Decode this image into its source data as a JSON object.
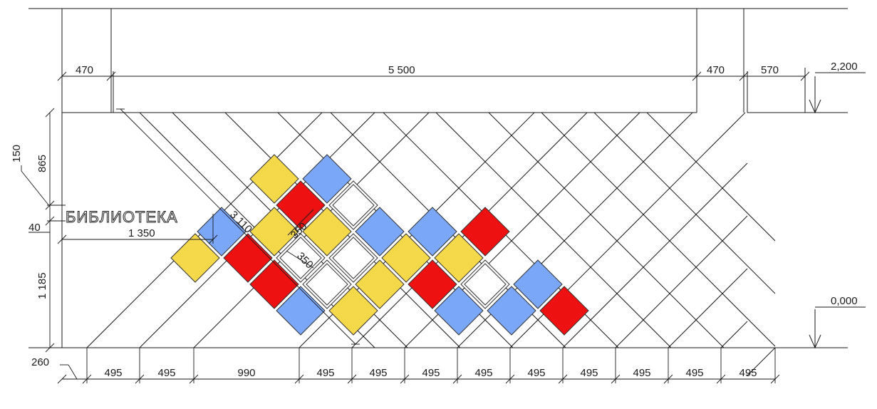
{
  "drawing": {
    "sign_text": "БИБЛИОТЕКА",
    "top_dims": [
      "470",
      "5 500",
      "470",
      "570"
    ],
    "bottom_dims": [
      "260",
      "495",
      "495",
      "990",
      "495",
      "495",
      "495",
      "495",
      "495",
      "495",
      "495",
      "495",
      "495"
    ],
    "left_dims": [
      "150",
      "865",
      "40",
      "1 185"
    ],
    "sign_width": "1 350",
    "diag_len": "3 110",
    "tile_dims": [
      "350",
      "350"
    ],
    "levels": [
      "2,200",
      "0,000"
    ],
    "colors": {
      "blue": "#7aa7f7",
      "yellow": "#f5d94a",
      "red": "#ee1111",
      "white": "#ffffff",
      "line": "#1a1a1a"
    },
    "tiles": [
      {
        "c": 0,
        "r": -3,
        "color": "blue"
      },
      {
        "c": 1,
        "r": -4,
        "color": "blue"
      },
      {
        "c": 2,
        "r": -5,
        "color": "red"
      },
      {
        "c": -1,
        "r": -1,
        "color": "yellow"
      },
      {
        "c": 0,
        "r": -2,
        "color": "red"
      },
      {
        "c": 1,
        "r": -3,
        "color": "white"
      },
      {
        "c": 2,
        "r": -4,
        "color": "blue"
      },
      {
        "c": -3,
        "r": 0,
        "color": "blue"
      },
      {
        "c": -2,
        "r": -1,
        "color": "yellow"
      },
      {
        "c": -1,
        "r": 0,
        "color": "white"
      },
      {
        "c": 0,
        "r": -1,
        "color": "yellow"
      },
      {
        "c": 1,
        "r": -2,
        "color": "yellow"
      },
      {
        "c": -3,
        "r": 1,
        "color": "red"
      },
      {
        "c": -2,
        "r": 0,
        "color": "white"
      },
      {
        "c": -1,
        "r": 1,
        "color": "yellow"
      },
      {
        "c": 0,
        "r": 0,
        "color": "blue"
      },
      {
        "c": 1,
        "r": -1,
        "color": "blue"
      },
      {
        "c": 2,
        "r": -2,
        "color": "red"
      },
      {
        "c": -3,
        "r": 2,
        "color": "red"
      },
      {
        "c": -2,
        "r": 1,
        "color": "white"
      },
      {
        "c": -1,
        "r": 2,
        "color": "red"
      },
      {
        "c": 0,
        "r": 1,
        "color": "white"
      },
      {
        "c": -4,
        "r": 3,
        "color": "yellow"
      },
      {
        "c": -3,
        "r": 3,
        "color": "blue"
      },
      {
        "c": -2,
        "r": 2,
        "color": "yellow"
      },
      {
        "c": -1,
        "r": 3,
        "color": "yellow"
      },
      {
        "c": 0,
        "r": 2,
        "color": "blue"
      }
    ]
  }
}
